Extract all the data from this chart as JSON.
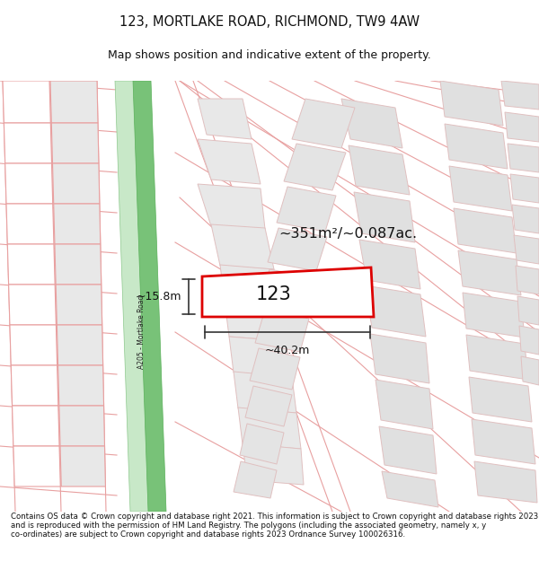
{
  "title": "123, MORTLAKE ROAD, RICHMOND, TW9 4AW",
  "subtitle": "Map shows position and indicative extent of the property.",
  "footer": "Contains OS data © Crown copyright and database right 2021. This information is subject to Crown copyright and database rights 2023 and is reproduced with the permission of HM Land Registry. The polygons (including the associated geometry, namely x, y co-ordinates) are subject to Crown copyright and database rights 2023 Ordnance Survey 100026316.",
  "road_label": "A205 - Mortlake Road",
  "area_label": "~351m²/~0.087ac.",
  "house_number": "123",
  "width_label": "~40.2m",
  "height_label": "~15.8m",
  "title_fontsize": 10.5,
  "subtitle_fontsize": 9,
  "footer_fontsize": 6.2,
  "map_bg": "#f8f8f8",
  "road_green_dark": "#78c278",
  "road_green_light": "#aadaaa",
  "block_gray": "#e8e8e8",
  "block_outline": "#e8a0a0",
  "road_line_color": "#e8a0a0",
  "subject_fill": "#ffffff",
  "subject_outline": "#dd0000"
}
